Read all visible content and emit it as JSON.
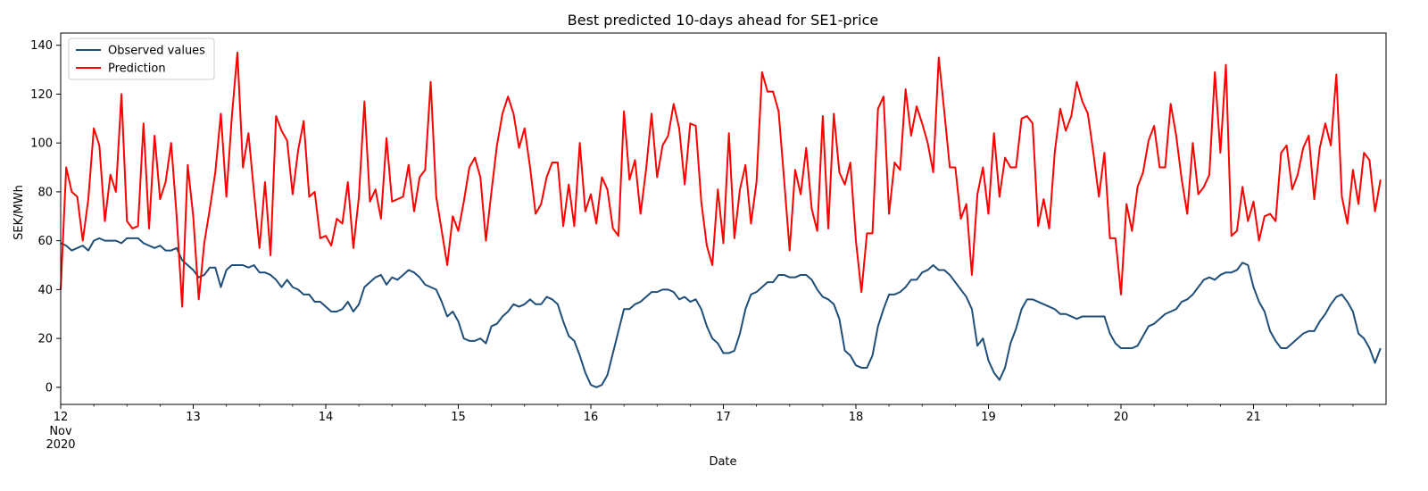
{
  "chart_data": {
    "type": "line",
    "title": "Best predicted 10-days ahead for SE1-price",
    "xlabel": "Date",
    "ylabel": "SEK/MWh",
    "x_start": "2020-11-12",
    "x_step_hours": 1,
    "x_ticks": [
      {
        "label": "12",
        "sub": [
          "Nov",
          "2020"
        ],
        "day": 0
      },
      {
        "label": "13",
        "day": 1
      },
      {
        "label": "14",
        "day": 2
      },
      {
        "label": "15",
        "day": 3
      },
      {
        "label": "16",
        "day": 4
      },
      {
        "label": "17",
        "day": 5
      },
      {
        "label": "18",
        "day": 6
      },
      {
        "label": "19",
        "day": 7
      },
      {
        "label": "20",
        "day": 8
      },
      {
        "label": "21",
        "day": 9
      }
    ],
    "xlim_days": [
      0,
      10
    ],
    "ylim": [
      -7,
      145
    ],
    "y_ticks": [
      0,
      20,
      40,
      60,
      80,
      100,
      120,
      140
    ],
    "grid": false,
    "legend": "top-left",
    "series": [
      {
        "name": "Observed values",
        "color": "#1f4e79",
        "values": [
          59,
          58,
          56,
          57,
          58,
          56,
          60,
          61,
          60,
          60,
          60,
          59,
          61,
          61,
          61,
          59,
          58,
          57,
          58,
          56,
          56,
          57,
          52,
          50,
          48,
          45,
          46,
          49,
          49,
          41,
          48,
          50,
          50,
          50,
          49,
          50,
          47,
          47,
          46,
          44,
          41,
          44,
          41,
          40,
          38,
          38,
          35,
          35,
          33,
          31,
          31,
          32,
          35,
          31,
          34,
          41,
          43,
          45,
          46,
          42,
          45,
          44,
          46,
          48,
          47,
          45,
          42,
          41,
          40,
          35,
          29,
          31,
          27,
          20,
          19,
          19,
          20,
          18,
          25,
          26,
          29,
          31,
          34,
          33,
          34,
          36,
          34,
          34,
          37,
          36,
          34,
          27,
          21,
          19,
          13,
          6,
          1,
          0,
          1,
          5,
          14,
          23,
          32,
          32,
          34,
          35,
          37,
          39,
          39,
          40,
          40,
          39,
          36,
          37,
          35,
          36,
          32,
          25,
          20,
          18,
          14,
          14,
          15,
          22,
          32,
          38,
          39,
          41,
          43,
          43,
          46,
          46,
          45,
          45,
          46,
          46,
          44,
          40,
          37,
          36,
          34,
          28,
          15,
          13,
          9,
          8,
          8,
          13,
          25,
          32,
          38,
          38,
          39,
          41,
          44,
          44,
          47,
          48,
          50,
          48,
          48,
          46,
          43,
          40,
          37,
          32,
          17,
          20,
          11,
          6,
          3,
          8,
          18,
          24,
          32,
          36,
          36,
          35,
          34,
          33,
          32,
          30,
          30,
          29,
          28,
          29,
          29,
          29,
          29,
          29,
          22,
          18,
          16,
          16,
          16,
          17,
          21,
          25,
          26,
          28,
          30,
          31,
          32,
          35,
          36,
          38,
          41,
          44,
          45,
          44,
          46,
          47,
          47,
          48,
          51,
          50,
          41,
          35,
          31,
          23,
          19,
          16,
          16,
          18,
          20,
          22,
          23,
          23,
          27,
          30,
          34,
          37,
          38,
          35,
          31,
          22,
          20,
          16,
          10,
          16
        ]
      },
      {
        "name": "Prediction",
        "color": "#ff0000",
        "values": [
          40,
          90,
          80,
          78,
          60,
          77,
          106,
          99,
          68,
          87,
          80,
          120,
          68,
          65,
          66,
          108,
          65,
          103,
          77,
          84,
          100,
          70,
          33,
          91,
          70,
          36,
          59,
          73,
          88,
          112,
          78,
          111,
          137,
          90,
          104,
          80,
          57,
          84,
          54,
          111,
          105,
          101,
          79,
          97,
          109,
          78,
          80,
          61,
          62,
          58,
          69,
          67,
          84,
          57,
          78,
          117,
          76,
          81,
          69,
          102,
          76,
          77,
          78,
          91,
          72,
          86,
          89,
          125,
          78,
          64,
          50,
          70,
          64,
          76,
          90,
          94,
          86,
          60,
          80,
          99,
          112,
          119,
          112,
          98,
          106,
          90,
          71,
          75,
          86,
          92,
          92,
          66,
          83,
          66,
          100,
          72,
          79,
          67,
          86,
          81,
          65,
          62,
          113,
          85,
          93,
          71,
          89,
          112,
          86,
          99,
          103,
          116,
          106,
          83,
          108,
          107,
          76,
          58,
          50,
          81,
          59,
          104,
          61,
          81,
          91,
          67,
          84,
          129,
          121,
          121,
          113,
          85,
          56,
          89,
          79,
          98,
          73,
          64,
          111,
          65,
          112,
          88,
          83,
          92,
          60,
          39,
          63,
          63,
          114,
          119,
          71,
          92,
          89,
          122,
          103,
          115,
          108,
          100,
          88,
          135,
          113,
          90,
          90,
          69,
          75,
          46,
          79,
          90,
          71,
          104,
          78,
          94,
          90,
          90,
          110,
          111,
          108,
          66,
          77,
          65,
          96,
          114,
          105,
          111,
          125,
          117,
          112,
          96,
          78,
          96,
          61,
          61,
          38,
          75,
          64,
          82,
          88,
          101,
          107,
          90,
          90,
          116,
          103,
          85,
          71,
          100,
          79,
          82,
          87,
          129,
          96,
          132,
          62,
          64,
          82,
          68,
          76,
          60,
          70,
          71,
          68,
          96,
          99,
          81,
          87,
          98,
          103,
          77,
          98,
          108,
          99,
          128,
          78,
          67,
          89,
          75,
          96,
          93,
          72,
          85
        ]
      }
    ]
  }
}
